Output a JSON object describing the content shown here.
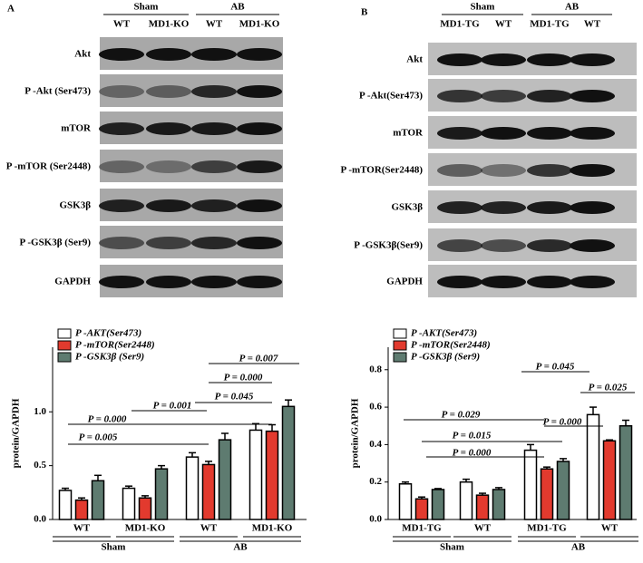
{
  "blots": [
    {
      "label": "A",
      "groups": [
        {
          "name": "Sham",
          "lanes": [
            "WT",
            "MD1-KO"
          ]
        },
        {
          "name": "AB",
          "lanes": [
            "WT",
            "MD1-KO"
          ]
        }
      ],
      "rows": [
        "Akt",
        "P -Akt (Ser473)",
        "mTOR",
        "P -mTOR (Ser2448)",
        "GSK3β",
        "P -GSK3β (Ser9)",
        "GAPDH"
      ]
    },
    {
      "label": "B",
      "groups": [
        {
          "name": "Sham",
          "lanes": [
            "MD1-TG",
            "WT"
          ]
        },
        {
          "name": "AB",
          "lanes": [
            "MD1-TG",
            "WT"
          ]
        }
      ],
      "rows": [
        "Akt",
        "P -Akt(Ser473)",
        "mTOR",
        "P -mTOR(Ser2448)",
        "GSK3β",
        "P -GSK3β(Ser9)",
        "GAPDH"
      ]
    }
  ],
  "chart_data": [
    {
      "type": "bar",
      "y_label": "protein/GAPDH",
      "categories": [
        "WT",
        "MD1-KO",
        "WT",
        "MD1-KO"
      ],
      "groups": [
        "Sham",
        "AB"
      ],
      "ylim": [
        0,
        1.6
      ],
      "yticks": [
        {
          "value": 0,
          "label": "0.0"
        },
        0.5,
        {
          "value": 1,
          "label": "1.0"
        }
      ],
      "series": [
        {
          "name": "P -AKT(Ser473)",
          "color": "#ffffff",
          "values": [
            0.27,
            0.29,
            0.58,
            0.83
          ],
          "errors": [
            0.02,
            0.02,
            0.04,
            0.06
          ]
        },
        {
          "name": "P -mTOR(Ser2448)",
          "color": "#e23a2e",
          "values": [
            0.18,
            0.2,
            0.51,
            0.82
          ],
          "errors": [
            0.02,
            0.02,
            0.03,
            0.06
          ]
        },
        {
          "name": "P -GSK3β (Ser9)",
          "color": "#5e7b70",
          "values": [
            0.36,
            0.47,
            0.74,
            1.05
          ],
          "errors": [
            0.05,
            0.03,
            0.06,
            0.06
          ]
        }
      ],
      "annotations": [
        "P = 0.005",
        "P = 0.000",
        "P = 0.001",
        "P = 0.045",
        "P = 0.000",
        "P = 0.007"
      ]
    },
    {
      "type": "bar",
      "y_label": "protein/GAPDH",
      "categories": [
        "MD1-TG",
        "WT",
        "MD1-TG",
        "WT"
      ],
      "groups": [
        "Sham",
        "AB"
      ],
      "ylim": [
        0,
        0.92
      ],
      "yticks": [
        {
          "value": 0,
          "label": "0.0"
        },
        0.2,
        0.4,
        0.6,
        0.8
      ],
      "series": [
        {
          "name": "P -AKT(Ser473)",
          "color": "#ffffff",
          "values": [
            0.19,
            0.2,
            0.37,
            0.56
          ],
          "errors": [
            0.01,
            0.015,
            0.03,
            0.04
          ]
        },
        {
          "name": "P -mTOR(Ser2448)",
          "color": "#e23a2e",
          "values": [
            0.11,
            0.13,
            0.27,
            0.42
          ],
          "errors": [
            0.01,
            0.01,
            0.01,
            0.005
          ]
        },
        {
          "name": "P -GSK3β (Ser9)",
          "color": "#5e7b70",
          "values": [
            0.16,
            0.16,
            0.31,
            0.5
          ],
          "errors": [
            0.005,
            0.01,
            0.015,
            0.03
          ]
        }
      ],
      "annotations": [
        "P = 0.045",
        "P = 0.025",
        "P = 0.029",
        "P = 0.000",
        "P = 0.015",
        "P = 0.000"
      ]
    }
  ]
}
